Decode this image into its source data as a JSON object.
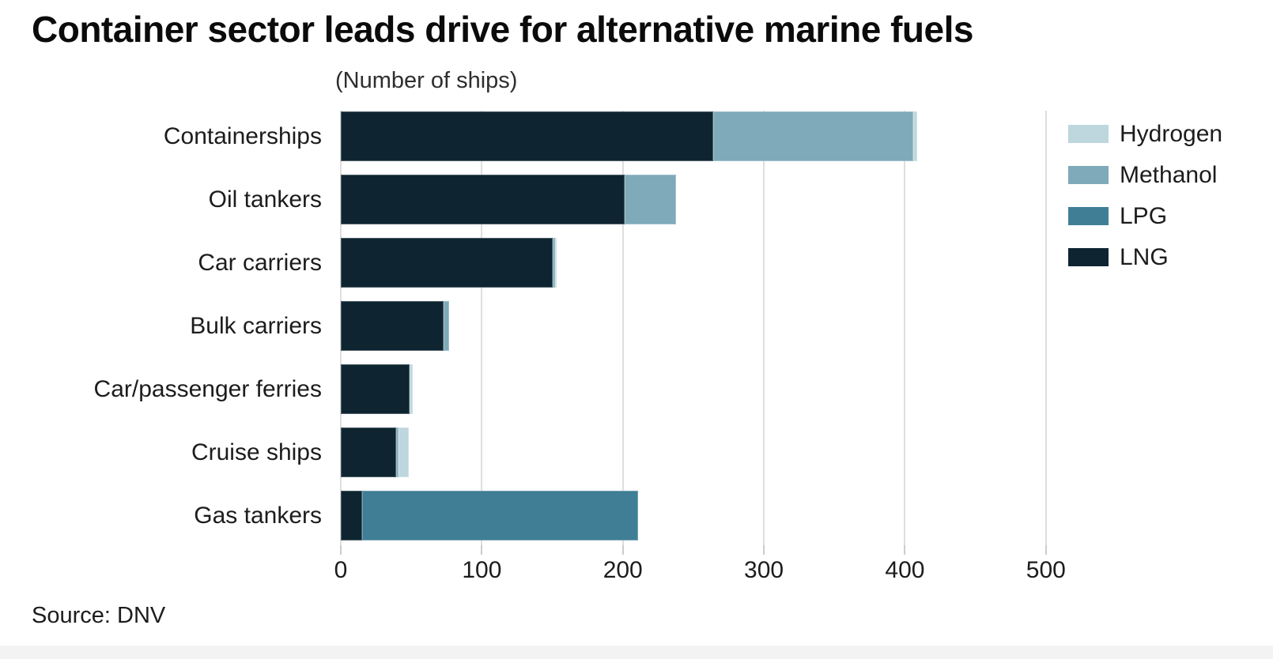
{
  "header": {
    "title": "Container sector leads drive for alternative marine fuels",
    "subtitle": "(Number of ships)"
  },
  "footer": {
    "source": "Source: DNV"
  },
  "chart_data": {
    "type": "bar",
    "orientation": "horizontal",
    "stacked": true,
    "title": "Container sector leads drive for alternative marine fuels",
    "subtitle": "(Number of ships)",
    "source": "Source: DNV",
    "categories": [
      "Containerships",
      "Oil tankers",
      "Car carriers",
      "Bulk carriers",
      "Car/passenger ferries",
      "Cruise ships",
      "Gas tankers"
    ],
    "series": [
      {
        "name": "Hydrogen",
        "color": "#bed6de",
        "values": [
          3,
          0,
          1,
          0,
          2,
          7,
          0
        ]
      },
      {
        "name": "Methanol",
        "color": "#7eaab9",
        "values": [
          142,
          37,
          2,
          4,
          0,
          2,
          0
        ]
      },
      {
        "name": "LPG",
        "color": "#3f7e95",
        "values": [
          0,
          0,
          0,
          0,
          0,
          0,
          196
        ]
      },
      {
        "name": "LNG",
        "color": "#0e2531",
        "values": [
          264,
          201,
          150,
          73,
          49,
          39,
          15
        ]
      }
    ],
    "totals": [
      409,
      238,
      153,
      77,
      51,
      48,
      211
    ],
    "stack_order": [
      "LNG",
      "LPG",
      "Methanol",
      "Hydrogen"
    ],
    "x_ticks": [
      0,
      100,
      200,
      300,
      400,
      500
    ],
    "x_max": 550,
    "xlabel": "",
    "ylabel": "",
    "grid": "vertical",
    "legend_position": "top-right",
    "colors": {
      "grid": "#dedede",
      "text": "#1c1c1c",
      "title": "#0b0b0b"
    }
  }
}
